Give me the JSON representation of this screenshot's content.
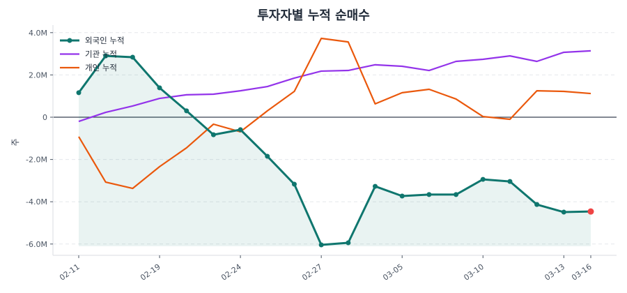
{
  "chart_data": {
    "type": "line",
    "title": "투자자별 누적 순매수",
    "xlabel": "",
    "ylabel": "주",
    "ylim": [
      -6.5,
      4.2
    ],
    "yticks": [
      {
        "value": 4.0,
        "label": "4.0M"
      },
      {
        "value": 2.0,
        "label": "2.0M"
      },
      {
        "value": 0,
        "label": "0"
      },
      {
        "value": -2.0,
        "label": "-2.0M"
      },
      {
        "value": -4.0,
        "label": "-4.0M"
      },
      {
        "value": -6.0,
        "label": "-6.0M"
      }
    ],
    "grid": true,
    "legend_position": "upper left",
    "x_index": [
      0,
      1,
      2,
      3,
      4,
      5,
      6,
      7,
      8,
      9,
      10,
      11,
      12,
      13,
      14,
      15,
      16,
      17,
      18,
      19
    ],
    "xticks": [
      {
        "index": 0,
        "label": "02-11"
      },
      {
        "index": 3,
        "label": "02-19"
      },
      {
        "index": 6,
        "label": "02-24"
      },
      {
        "index": 9,
        "label": "02-27"
      },
      {
        "index": 12,
        "label": "03-05"
      },
      {
        "index": 15,
        "label": "03-10"
      },
      {
        "index": 18,
        "label": "03-13"
      },
      {
        "index": 19,
        "label": "03-16"
      }
    ],
    "units": "M (million shares)",
    "series": [
      {
        "name": "외국인 누적",
        "color": "#0f766e",
        "markers": true,
        "fill": true,
        "last_point_color": "#ef4444",
        "values": [
          1.16,
          2.9,
          2.84,
          1.39,
          0.3,
          -0.83,
          -0.59,
          -1.85,
          -3.17,
          -6.04,
          -5.94,
          -3.27,
          -3.73,
          -3.66,
          -3.66,
          -2.94,
          -3.04,
          -4.13,
          -4.49,
          -4.46
        ]
      },
      {
        "name": "기관 누적",
        "color": "#9333ea",
        "markers": false,
        "values": [
          -0.2,
          0.23,
          0.53,
          0.89,
          1.06,
          1.09,
          1.25,
          1.45,
          1.85,
          2.18,
          2.21,
          2.48,
          2.41,
          2.21,
          2.64,
          2.74,
          2.9,
          2.64,
          3.07,
          3.14
        ]
      },
      {
        "name": "개인 누적",
        "color": "#ea580c",
        "markers": false,
        "values": [
          -0.92,
          -3.07,
          -3.37,
          -2.34,
          -1.45,
          -0.33,
          -0.69,
          0.3,
          1.22,
          3.73,
          3.56,
          0.63,
          1.16,
          1.32,
          0.86,
          0.03,
          -0.1,
          1.25,
          1.22,
          1.12
        ]
      }
    ]
  },
  "legend": {
    "items": [
      {
        "label": "외국인 누적"
      },
      {
        "label": "기관 누적"
      },
      {
        "label": "개인 누적"
      }
    ]
  }
}
